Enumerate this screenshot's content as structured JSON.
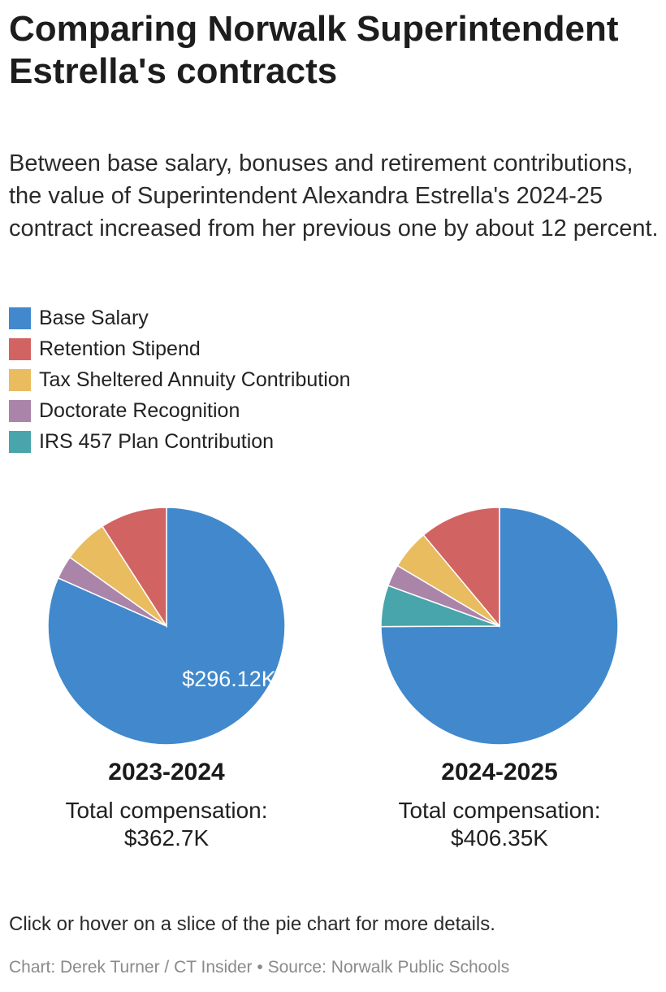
{
  "header": {
    "title": "Comparing Norwalk Superintendent Estrella's contracts",
    "subtitle": "Between base salary, bonuses and retirement contributions, the value of Superintendent Alexandra Estrella's 2024-25 contract increased from her previous one by about 12 percent."
  },
  "legend": [
    {
      "label": "Base Salary",
      "color": "#4189cc"
    },
    {
      "label": "Retention Stipend",
      "color": "#d26363"
    },
    {
      "label": "Tax Sheltered Annuity Contribution",
      "color": "#e8bc5f"
    },
    {
      "label": "Doctorate Recognition",
      "color": "#ab84a9"
    },
    {
      "label": "IRS 457 Plan Contribution",
      "color": "#48a5ab"
    }
  ],
  "chart_data": [
    {
      "type": "pie",
      "title": "2023-2024",
      "total_label": "Total compensation:",
      "total_value": "$362.7K",
      "categories": [
        "Base Salary",
        "Retention Stipend",
        "Tax Sheltered Annuity Contribution",
        "Doctorate Recognition",
        "IRS 457 Plan Contribution"
      ],
      "values": [
        296.12,
        33.0,
        22.0,
        11.58,
        0
      ],
      "units": "thousands of dollars",
      "data_labels": [
        "$296.12K"
      ]
    },
    {
      "type": "pie",
      "title": "2024-2025",
      "total_label": "Total compensation:",
      "total_value": "$406.35K",
      "categories": [
        "Base Salary",
        "Retention Stipend",
        "Tax Sheltered Annuity Contribution",
        "Doctorate Recognition",
        "IRS 457 Plan Contribution"
      ],
      "values": [
        304.5,
        45.0,
        22.0,
        12.0,
        22.85
      ],
      "units": "thousands of dollars",
      "data_labels": []
    }
  ],
  "footer": {
    "hint": "Click or hover on a slice of the pie chart for more details.",
    "credit": "Chart: Derek Turner / CT Insider • Source: Norwalk Public Schools"
  }
}
